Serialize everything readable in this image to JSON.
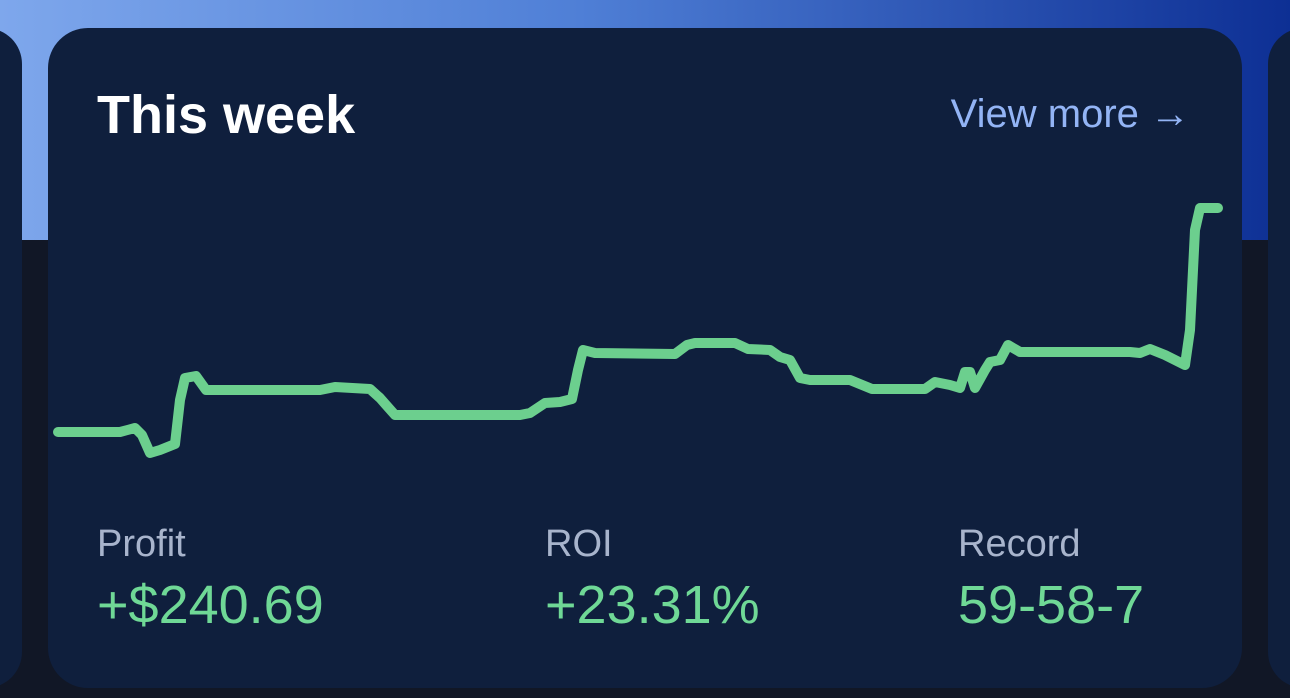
{
  "header": {
    "title": "This week",
    "link": "View more →"
  },
  "stats": [
    {
      "label": "Profit",
      "value": "+$240.69"
    },
    {
      "label": "ROI",
      "value": "+23.31%"
    },
    {
      "label": "Record",
      "value": "59-58-7"
    }
  ]
}
